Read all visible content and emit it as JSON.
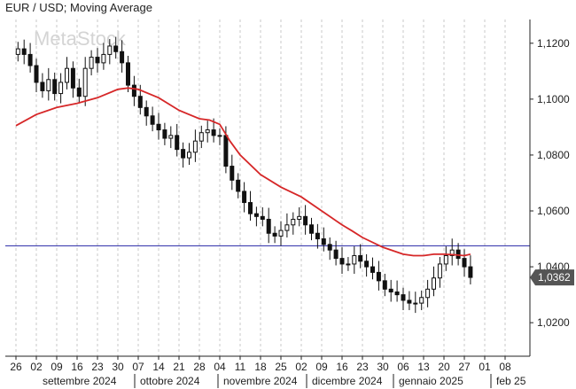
{
  "header": {
    "title": "EUR / USD; Moving Average",
    "watermark": "MetaStock"
  },
  "price_badge": {
    "label": "1,0362",
    "color": "#555555"
  },
  "colors": {
    "ma_line": "#d62728",
    "hline": "#3f3fb0",
    "candle": "#111111",
    "grid": "#c8c8c8"
  },
  "chart_data": {
    "type": "line",
    "title": "EUR / USD; Moving Average",
    "xlabel": "",
    "ylabel": "",
    "ylim": [
      1.008,
      1.1285
    ],
    "y_ticks": [
      "1,0200",
      "1,0400",
      "1,0600",
      "1,0800",
      "1,1000",
      "1,1200"
    ],
    "y_tick_values": [
      1.02,
      1.04,
      1.06,
      1.08,
      1.1,
      1.12
    ],
    "x_ticks": [
      "26",
      "02",
      "09",
      "16",
      "23",
      "30",
      "07",
      "14",
      "21",
      "28",
      "04",
      "11",
      "18",
      "25",
      "02",
      "09",
      "16",
      "23",
      "30",
      "06",
      "13",
      "20",
      "27",
      "01",
      "08"
    ],
    "months": [
      "settembre 2024",
      "ottobre 2024",
      "novembre 2024",
      "dicembre 2024",
      "gennaio 2025",
      "feb 25"
    ],
    "grid": true,
    "horizontal_line": 1.0475,
    "last_price": 1.0362,
    "series": [
      {
        "kind": "candlestick",
        "x": [
          0.1,
          0.4,
          0.7,
          1.0,
          1.3,
          1.6,
          1.9,
          2.2,
          2.5,
          2.8,
          3.1,
          3.4,
          3.7,
          4.0,
          4.3,
          4.6,
          4.9,
          5.2,
          5.5,
          5.8,
          6.1,
          6.4,
          6.7,
          7.0,
          7.3,
          7.6,
          7.9,
          8.2,
          8.5,
          8.8,
          9.1,
          9.4,
          9.7,
          10.0,
          10.3,
          10.6,
          10.9,
          11.2,
          11.5,
          11.8,
          12.1,
          12.4,
          12.7,
          13.0,
          13.3,
          13.6,
          13.9,
          14.2,
          14.5,
          14.8,
          15.1,
          15.4,
          15.7,
          16.0,
          16.3,
          16.6,
          16.9,
          17.2,
          17.5,
          17.8,
          18.1,
          18.4,
          18.7,
          19.0,
          19.3,
          19.6,
          19.9,
          20.2,
          20.5,
          20.8,
          21.1,
          21.4,
          21.7,
          22.0,
          22.3
        ],
        "close": [
          1.118,
          1.116,
          1.112,
          1.106,
          1.103,
          1.107,
          1.102,
          1.106,
          1.111,
          1.104,
          1.101,
          1.111,
          1.115,
          1.113,
          1.116,
          1.119,
          1.117,
          1.113,
          1.105,
          1.101,
          1.097,
          1.094,
          1.091,
          1.089,
          1.086,
          1.087,
          1.082,
          1.079,
          1.081,
          1.085,
          1.088,
          1.089,
          1.087,
          1.087,
          1.076,
          1.071,
          1.067,
          1.063,
          1.059,
          1.058,
          1.057,
          1.052,
          1.051,
          1.053,
          1.055,
          1.057,
          1.058,
          1.055,
          1.052,
          1.05,
          1.048,
          1.046,
          1.043,
          1.041,
          1.041,
          1.044,
          1.042,
          1.04,
          1.038,
          1.035,
          1.032,
          1.031,
          1.03,
          1.028,
          1.027,
          1.027,
          1.029,
          1.032,
          1.036,
          1.041,
          1.044,
          1.046,
          1.043,
          1.04,
          1.0362
        ]
      },
      {
        "kind": "moving_average",
        "x": [
          0.0,
          1.0,
          2.0,
          3.0,
          4.0,
          5.0,
          5.5,
          6.0,
          7.0,
          8.0,
          9.0,
          9.5,
          10.0,
          10.5,
          11.0,
          12.0,
          13.0,
          14.0,
          15.0,
          15.5,
          16.0,
          16.5,
          17.0,
          18.0,
          19.0,
          19.5,
          20.0,
          20.5,
          21.0,
          21.5,
          22.0,
          22.3
        ],
        "y": [
          1.0905,
          1.0945,
          1.097,
          1.0985,
          1.1005,
          1.1035,
          1.104,
          1.1035,
          1.1005,
          1.096,
          1.093,
          1.0925,
          1.091,
          1.085,
          1.08,
          1.073,
          1.0685,
          1.065,
          1.06,
          1.0575,
          1.055,
          1.0528,
          1.0505,
          1.047,
          1.0445,
          1.044,
          1.044,
          1.0445,
          1.0445,
          1.0443,
          1.044,
          1.0445
        ]
      }
    ]
  }
}
